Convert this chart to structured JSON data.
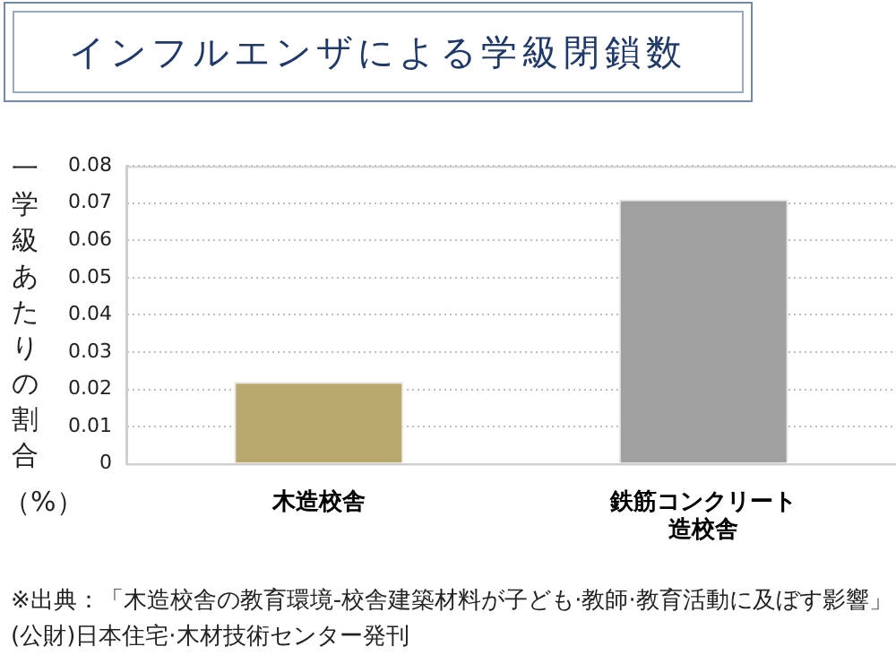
{
  "chart_data": {
    "type": "bar",
    "title": "インフルエンザによる学級閉鎖数",
    "ylabel": "一学級あたりの割合（%）",
    "categories": [
      "木造校舎",
      "鉄筋コンクリート造校舎"
    ],
    "series": [
      {
        "colors": [
          "#b9a96f",
          "#a0a0a0"
        ],
        "values": [
          0.022,
          0.071
        ]
      }
    ],
    "ylim": [
      0,
      0.08
    ],
    "yticks": [
      0,
      0.01,
      0.02,
      0.03,
      0.04,
      0.05,
      0.06,
      0.07,
      0.08
    ],
    "grid": "y",
    "legend": false,
    "annotations": [
      "※出典：「木造校舎の教育環境-校舎建築材料が子ども·教師·教育活動に及ぼす影響」(公財)日本住宅·木材技術センター発刊"
    ]
  }
}
